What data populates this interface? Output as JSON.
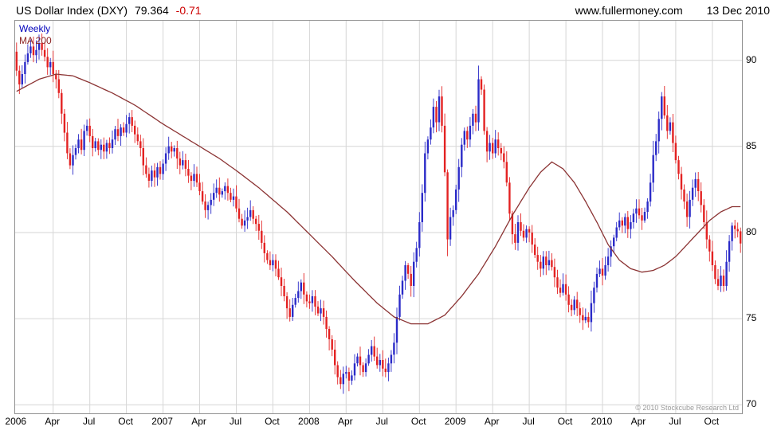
{
  "header": {
    "title": "US Dollar Index (DXY)",
    "price": "79.364",
    "change": "-0.71",
    "website": "www.fullermoney.com",
    "date": "13 Dec 2010"
  },
  "chart": {
    "legend_type": "Weekly",
    "legend_ma": "MA 200",
    "copyright": "© 2010 Stockcube Research Ltd",
    "colors": {
      "up": "#2b2bc8",
      "down": "#e32222",
      "ma": "#8b3333",
      "grid": "#d6d6d6",
      "border": "#909090"
    }
  },
  "chart_data": {
    "type": "candlestick",
    "instrument": "US Dollar Index (DXY)",
    "timeframe": "weekly",
    "last_price": 79.364,
    "change": -0.71,
    "ylim": [
      69.5,
      92.3
    ],
    "y_ticks": [
      70,
      75,
      80,
      85,
      90
    ],
    "x_ticks": [
      {
        "label": "2006",
        "week": 0
      },
      {
        "label": "Apr",
        "week": 13
      },
      {
        "label": "Jul",
        "week": 26
      },
      {
        "label": "Oct",
        "week": 39
      },
      {
        "label": "2007",
        "week": 52
      },
      {
        "label": "Apr",
        "week": 65
      },
      {
        "label": "Jul",
        "week": 78
      },
      {
        "label": "Oct",
        "week": 91
      },
      {
        "label": "2008",
        "week": 104
      },
      {
        "label": "Apr",
        "week": 117
      },
      {
        "label": "Jul",
        "week": 130
      },
      {
        "label": "Oct",
        "week": 143
      },
      {
        "label": "2009",
        "week": 156
      },
      {
        "label": "Apr",
        "week": 169
      },
      {
        "label": "Jul",
        "week": 182
      },
      {
        "label": "Oct",
        "week": 195
      },
      {
        "label": "2010",
        "week": 208
      },
      {
        "label": "Apr",
        "week": 221
      },
      {
        "label": "Jul",
        "week": 234
      },
      {
        "label": "Oct",
        "week": 247
      }
    ],
    "first_open": 90.5,
    "weekly_closes": [
      89.4,
      88.6,
      89.2,
      89.9,
      90.4,
      90.8,
      90.3,
      90.6,
      91.0,
      90.6,
      90.2,
      89.6,
      89.9,
      89.2,
      88.9,
      88.1,
      86.9,
      85.8,
      84.6,
      83.9,
      84.5,
      84.9,
      85.4,
      84.8,
      85.9,
      86.2,
      85.6,
      84.9,
      85.3,
      84.8,
      85.1,
      84.7,
      85.2,
      84.9,
      85.4,
      86.0,
      85.6,
      86.1,
      85.8,
      86.3,
      86.7,
      86.2,
      85.7,
      85.3,
      84.9,
      83.9,
      83.4,
      83.0,
      83.6,
      83.2,
      83.8,
      83.4,
      84.0,
      84.6,
      85.0,
      84.7,
      84.9,
      84.3,
      83.9,
      84.2,
      83.7,
      83.3,
      83.0,
      83.4,
      82.9,
      82.4,
      81.8,
      81.3,
      81.6,
      81.9,
      82.3,
      82.6,
      82.2,
      82.4,
      82.7,
      82.3,
      81.9,
      82.1,
      81.4,
      80.8,
      80.4,
      80.7,
      80.9,
      81.3,
      80.8,
      80.5,
      80.1,
      79.4,
      78.8,
      78.4,
      78.1,
      78.4,
      77.9,
      77.4,
      76.9,
      76.3,
      75.6,
      75.1,
      75.8,
      76.2,
      76.6,
      77.1,
      76.4,
      76.0,
      75.9,
      76.3,
      75.7,
      75.3,
      75.6,
      75.1,
      74.4,
      73.8,
      73.2,
      72.3,
      71.6,
      71.2,
      71.8,
      71.9,
      71.4,
      71.7,
      72.4,
      72.8,
      72.3,
      71.9,
      72.4,
      72.9,
      73.4,
      72.8,
      72.3,
      72.6,
      72.1,
      71.9,
      72.4,
      72.9,
      73.6,
      75.1,
      76.4,
      77.2,
      78.1,
      77.6,
      76.9,
      78.3,
      79.1,
      80.6,
      82.3,
      84.6,
      85.4,
      86.1,
      87.3,
      86.4,
      87.9,
      86.2,
      83.5,
      79.6,
      80.9,
      81.3,
      82.5,
      83.8,
      85.1,
      85.9,
      85.4,
      86.2,
      86.9,
      86.4,
      88.9,
      88.3,
      85.9,
      84.7,
      85.2,
      84.6,
      85.4,
      84.9,
      84.6,
      84.1,
      82.9,
      81.1,
      79.9,
      79.4,
      80.6,
      80.1,
      79.7,
      80.2,
      80.0,
      79.3,
      78.7,
      78.3,
      77.9,
      78.6,
      78.1,
      78.4,
      78.0,
      77.4,
      76.8,
      76.5,
      77.0,
      76.4,
      75.8,
      75.5,
      76.1,
      75.6,
      75.2,
      74.9,
      75.1,
      74.8,
      75.9,
      76.8,
      77.6,
      77.9,
      77.5,
      78.1,
      78.6,
      79.2,
      79.7,
      80.3,
      80.7,
      80.4,
      80.9,
      80.2,
      80.6,
      81.1,
      81.4,
      81.0,
      80.7,
      81.2,
      81.8,
      82.9,
      84.5,
      85.3,
      86.6,
      87.9,
      86.8,
      85.9,
      86.4,
      85.2,
      84.2,
      83.4,
      82.5,
      81.8,
      80.9,
      81.9,
      82.6,
      83.1,
      82.4,
      81.6,
      80.6,
      79.6,
      78.9,
      78.1,
      77.3,
      76.9,
      77.5,
      76.9,
      78.3,
      79.5,
      80.4,
      80.2,
      80.07,
      79.364
    ],
    "ma200": {
      "weeks": [
        0,
        8,
        14,
        20,
        26,
        34,
        42,
        52,
        62,
        72,
        78,
        86,
        96,
        104,
        112,
        120,
        128,
        134,
        140,
        146,
        152,
        158,
        164,
        170,
        176,
        182,
        186,
        190,
        194,
        198,
        202,
        206,
        210,
        214,
        218,
        222,
        226,
        230,
        234,
        238,
        242,
        246,
        250,
        254,
        257
      ],
      "values": [
        88.2,
        88.9,
        89.2,
        89.1,
        88.7,
        88.1,
        87.4,
        86.3,
        85.3,
        84.3,
        83.6,
        82.6,
        81.2,
        79.9,
        78.6,
        77.2,
        75.9,
        75.1,
        74.7,
        74.7,
        75.2,
        76.3,
        77.6,
        79.2,
        81.0,
        82.6,
        83.5,
        84.1,
        83.7,
        82.9,
        81.8,
        80.6,
        79.3,
        78.4,
        77.9,
        77.7,
        77.8,
        78.1,
        78.6,
        79.3,
        80.0,
        80.7,
        81.2,
        81.5,
        81.5
      ]
    }
  }
}
